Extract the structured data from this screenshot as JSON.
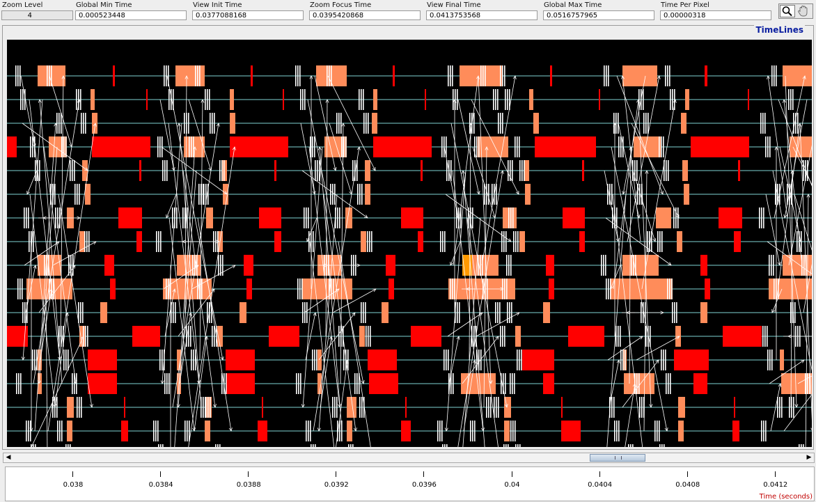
{
  "header": {
    "fields": [
      {
        "label": "Zoom Level",
        "value": "4"
      },
      {
        "label": "Global Min Time",
        "value": "0.000523448"
      },
      {
        "label": "View  Init Time",
        "value": "0.0377088168"
      },
      {
        "label": "Zoom Focus Time",
        "value": "0.0395420868"
      },
      {
        "label": "View Final Time",
        "value": "0.0413753568"
      },
      {
        "label": "Global Max Time",
        "value": "0.0516757965"
      },
      {
        "label": "Time Per Pixel",
        "value": "0.00000318"
      }
    ]
  },
  "toolbar": {
    "zoom_tool_icon": "magnifier-icon",
    "hand_tool_icon": "hand-icon"
  },
  "panel": {
    "title": "TimeLines"
  },
  "axis": {
    "ticks": [
      "0.038",
      "0.0384",
      "0.0388",
      "0.0392",
      "0.0396",
      "0.04",
      "0.0404",
      "0.0408",
      "0.0412"
    ],
    "label": "Time (seconds)"
  },
  "colors": {
    "background": "#000000",
    "timeline_line": "#7fd3d3",
    "state_salmon": "#ff8c5a",
    "state_red": "#ff0000",
    "event_white": "#ffffff",
    "title_blue": "#0a1ea0",
    "axis_label_red": "#c00000"
  },
  "scrollbar": {
    "left_icon": "left-arrow-icon",
    "right_icon": "right-arrow-icon"
  }
}
